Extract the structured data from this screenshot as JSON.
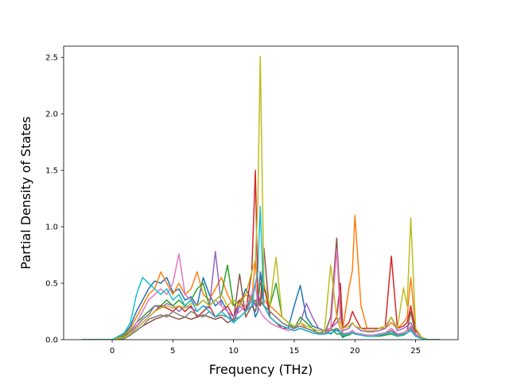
{
  "chart_data": {
    "type": "line",
    "title": "",
    "xlabel": "Frequency (THz)",
    "ylabel": "Partial Density of States",
    "xlim": [
      -4.0,
      28.5
    ],
    "ylim": [
      0.0,
      2.6
    ],
    "xticks": [
      0,
      5,
      10,
      15,
      20,
      25
    ],
    "yticks": [
      0.0,
      0.5,
      1.0,
      1.5,
      2.0,
      2.5
    ],
    "grid": false,
    "legend": "none",
    "palette": [
      "#1f77b4",
      "#ff7f0e",
      "#2ca02c",
      "#d62728",
      "#9467bd",
      "#8c564b",
      "#e377c2",
      "#7f7f7f",
      "#bcbd22",
      "#17becf"
    ],
    "x": [
      -2.5,
      -1.0,
      0.0,
      1.0,
      1.5,
      2.0,
      2.5,
      3.0,
      3.5,
      4.0,
      4.5,
      5.0,
      5.5,
      6.0,
      6.5,
      7.0,
      7.5,
      8.0,
      8.5,
      9.0,
      9.5,
      10.0,
      10.5,
      11.0,
      11.5,
      11.8,
      12.0,
      12.2,
      12.5,
      13.0,
      13.5,
      14.0,
      14.5,
      15.0,
      15.5,
      16.0,
      16.5,
      17.0,
      17.5,
      18.0,
      18.5,
      18.8,
      19.0,
      19.5,
      19.8,
      20.0,
      20.5,
      21.0,
      21.5,
      22.0,
      22.5,
      23.0,
      23.5,
      24.0,
      24.3,
      24.6,
      25.0,
      25.5,
      26.0,
      27.0
    ],
    "series": [
      {
        "values": [
          0,
          0,
          0,
          0.05,
          0.12,
          0.25,
          0.35,
          0.45,
          0.52,
          0.5,
          0.55,
          0.42,
          0.45,
          0.35,
          0.38,
          0.3,
          0.55,
          0.4,
          0.3,
          0.35,
          0.25,
          0.15,
          0.3,
          0.45,
          0.35,
          0.2,
          0.25,
          0.6,
          0.3,
          0.2,
          0.15,
          0.12,
          0.1,
          0.3,
          0.48,
          0.2,
          0.12,
          0.1,
          0.08,
          0.05,
          0.1,
          0.05,
          0.02,
          0.05,
          0.08,
          0.05,
          0.04,
          0.03,
          0.03,
          0.03,
          0.04,
          0.08,
          0.03,
          0.06,
          0.08,
          0.12,
          0.04,
          0.01,
          0,
          0
        ]
      },
      {
        "values": [
          0,
          0,
          0,
          0.04,
          0.1,
          0.2,
          0.3,
          0.4,
          0.45,
          0.6,
          0.5,
          0.4,
          0.5,
          0.4,
          0.45,
          0.6,
          0.4,
          0.35,
          0.45,
          0.55,
          0.4,
          0.3,
          0.35,
          0.4,
          0.35,
          0.7,
          0.4,
          0.3,
          0.35,
          0.3,
          0.25,
          0.2,
          0.15,
          0.1,
          0.15,
          0.1,
          0.08,
          0.06,
          0.05,
          0.1,
          0.2,
          0.1,
          0.1,
          0.45,
          0.62,
          1.1,
          0.3,
          0.1,
          0.1,
          0.1,
          0.1,
          0.15,
          0.1,
          0.15,
          0.2,
          0.55,
          0.1,
          0.02,
          0,
          0
        ]
      },
      {
        "values": [
          0,
          0,
          0,
          0.03,
          0.08,
          0.15,
          0.2,
          0.25,
          0.3,
          0.3,
          0.35,
          0.3,
          0.35,
          0.3,
          0.35,
          0.45,
          0.5,
          0.3,
          0.35,
          0.4,
          0.66,
          0.3,
          0.35,
          0.25,
          0.4,
          0.3,
          0.35,
          0.5,
          0.45,
          0.3,
          0.5,
          0.2,
          0.15,
          0.1,
          0.2,
          0.15,
          0.1,
          0.05,
          0.08,
          0.1,
          0.05,
          0.05,
          0.03,
          0.04,
          0.06,
          0.05,
          0.04,
          0.03,
          0.03,
          0.03,
          0.04,
          0.05,
          0.03,
          0.04,
          0.06,
          0.1,
          0.03,
          0.01,
          0,
          0
        ]
      },
      {
        "values": [
          0,
          0,
          0,
          0.02,
          0.05,
          0.1,
          0.15,
          0.2,
          0.25,
          0.3,
          0.28,
          0.25,
          0.3,
          0.25,
          0.3,
          0.2,
          0.25,
          0.3,
          0.2,
          0.25,
          0.3,
          0.2,
          0.35,
          0.25,
          0.6,
          1.5,
          0.4,
          0.3,
          0.5,
          0.2,
          0.15,
          0.1,
          0.1,
          0.08,
          0.1,
          0.08,
          0.06,
          0.05,
          0.05,
          0.1,
          0.2,
          0.5,
          0.1,
          0.15,
          0.25,
          0.2,
          0.1,
          0.1,
          0.1,
          0.1,
          0.12,
          0.74,
          0.1,
          0.12,
          0.15,
          0.3,
          0.08,
          0.02,
          0,
          0
        ]
      },
      {
        "values": [
          0,
          0,
          0,
          0.02,
          0.06,
          0.12,
          0.18,
          0.22,
          0.3,
          0.28,
          0.32,
          0.3,
          0.25,
          0.3,
          0.28,
          0.25,
          0.3,
          0.28,
          0.78,
          0.3,
          0.25,
          0.2,
          0.3,
          0.25,
          0.35,
          0.3,
          0.4,
          0.35,
          0.3,
          0.25,
          0.2,
          0.15,
          0.12,
          0.1,
          0.15,
          0.32,
          0.2,
          0.1,
          0.08,
          0.1,
          0.15,
          0.2,
          0.08,
          0.1,
          0.15,
          0.12,
          0.08,
          0.07,
          0.07,
          0.08,
          0.1,
          0.2,
          0.08,
          0.1,
          0.12,
          0.15,
          0.05,
          0.01,
          0,
          0
        ]
      },
      {
        "values": [
          0,
          0,
          0,
          0.01,
          0.04,
          0.08,
          0.12,
          0.15,
          0.18,
          0.2,
          0.22,
          0.2,
          0.18,
          0.2,
          0.18,
          0.2,
          0.22,
          0.2,
          0.18,
          0.2,
          0.15,
          0.18,
          0.58,
          0.2,
          0.3,
          0.25,
          0.35,
          0.3,
          0.81,
          0.2,
          0.15,
          0.12,
          0.1,
          0.08,
          0.1,
          0.08,
          0.06,
          0.05,
          0.05,
          0.2,
          0.9,
          0.3,
          0.05,
          0.06,
          0.08,
          0.06,
          0.05,
          0.04,
          0.04,
          0.05,
          0.06,
          0.1,
          0.05,
          0.06,
          0.08,
          0.25,
          0.04,
          0.01,
          0,
          0
        ]
      },
      {
        "values": [
          0,
          0,
          0,
          0.02,
          0.06,
          0.15,
          0.25,
          0.35,
          0.4,
          0.45,
          0.4,
          0.5,
          0.76,
          0.4,
          0.35,
          0.3,
          0.35,
          0.3,
          0.35,
          0.3,
          0.25,
          0.2,
          0.25,
          0.3,
          0.4,
          0.5,
          0.3,
          0.25,
          0.2,
          0.15,
          0.12,
          0.1,
          0.08,
          0.1,
          0.12,
          0.1,
          0.08,
          0.06,
          0.06,
          0.1,
          0.8,
          0.2,
          0.05,
          0.06,
          0.08,
          0.06,
          0.05,
          0.04,
          0.04,
          0.05,
          0.06,
          0.1,
          0.05,
          0.06,
          0.08,
          0.12,
          0.04,
          0.01,
          0,
          0
        ]
      },
      {
        "values": [
          0,
          0,
          0,
          0.01,
          0.04,
          0.08,
          0.12,
          0.18,
          0.2,
          0.22,
          0.2,
          0.25,
          0.22,
          0.2,
          0.25,
          0.22,
          0.2,
          0.25,
          0.2,
          0.22,
          0.2,
          0.18,
          0.2,
          0.25,
          0.3,
          0.35,
          0.3,
          0.35,
          0.3,
          0.25,
          0.2,
          0.15,
          0.12,
          0.1,
          0.12,
          0.1,
          0.08,
          0.06,
          0.05,
          0.08,
          0.1,
          0.08,
          0.05,
          0.05,
          0.06,
          0.05,
          0.04,
          0.03,
          0.03,
          0.04,
          0.05,
          0.08,
          0.04,
          0.05,
          0.06,
          0.1,
          0.03,
          0.01,
          0,
          0
        ]
      },
      {
        "values": [
          0,
          0,
          0,
          0.02,
          0.05,
          0.1,
          0.15,
          0.2,
          0.25,
          0.28,
          0.3,
          0.28,
          0.3,
          0.28,
          0.32,
          0.3,
          0.35,
          0.3,
          0.35,
          0.4,
          0.3,
          0.35,
          0.3,
          0.4,
          0.6,
          0.7,
          1.2,
          2.51,
          0.5,
          0.3,
          0.73,
          0.2,
          0.15,
          0.12,
          0.15,
          0.12,
          0.1,
          0.08,
          0.08,
          0.66,
          0.2,
          0.15,
          0.1,
          0.12,
          0.15,
          0.12,
          0.1,
          0.08,
          0.08,
          0.1,
          0.12,
          0.2,
          0.1,
          0.46,
          0.3,
          1.08,
          0.1,
          0.02,
          0,
          0
        ]
      },
      {
        "values": [
          0,
          0,
          0,
          0.06,
          0.15,
          0.4,
          0.55,
          0.5,
          0.45,
          0.4,
          0.45,
          0.35,
          0.4,
          0.3,
          0.35,
          0.25,
          0.3,
          0.25,
          0.2,
          0.25,
          0.2,
          0.15,
          0.2,
          0.25,
          0.3,
          0.5,
          0.6,
          1.18,
          0.3,
          0.2,
          0.15,
          0.12,
          0.1,
          0.08,
          0.1,
          0.08,
          0.06,
          0.05,
          0.05,
          0.06,
          0.08,
          0.06,
          0.04,
          0.05,
          0.06,
          0.05,
          0.04,
          0.03,
          0.03,
          0.04,
          0.05,
          0.06,
          0.03,
          0.05,
          0.06,
          0.08,
          0.03,
          0.01,
          0,
          0
        ]
      }
    ]
  }
}
